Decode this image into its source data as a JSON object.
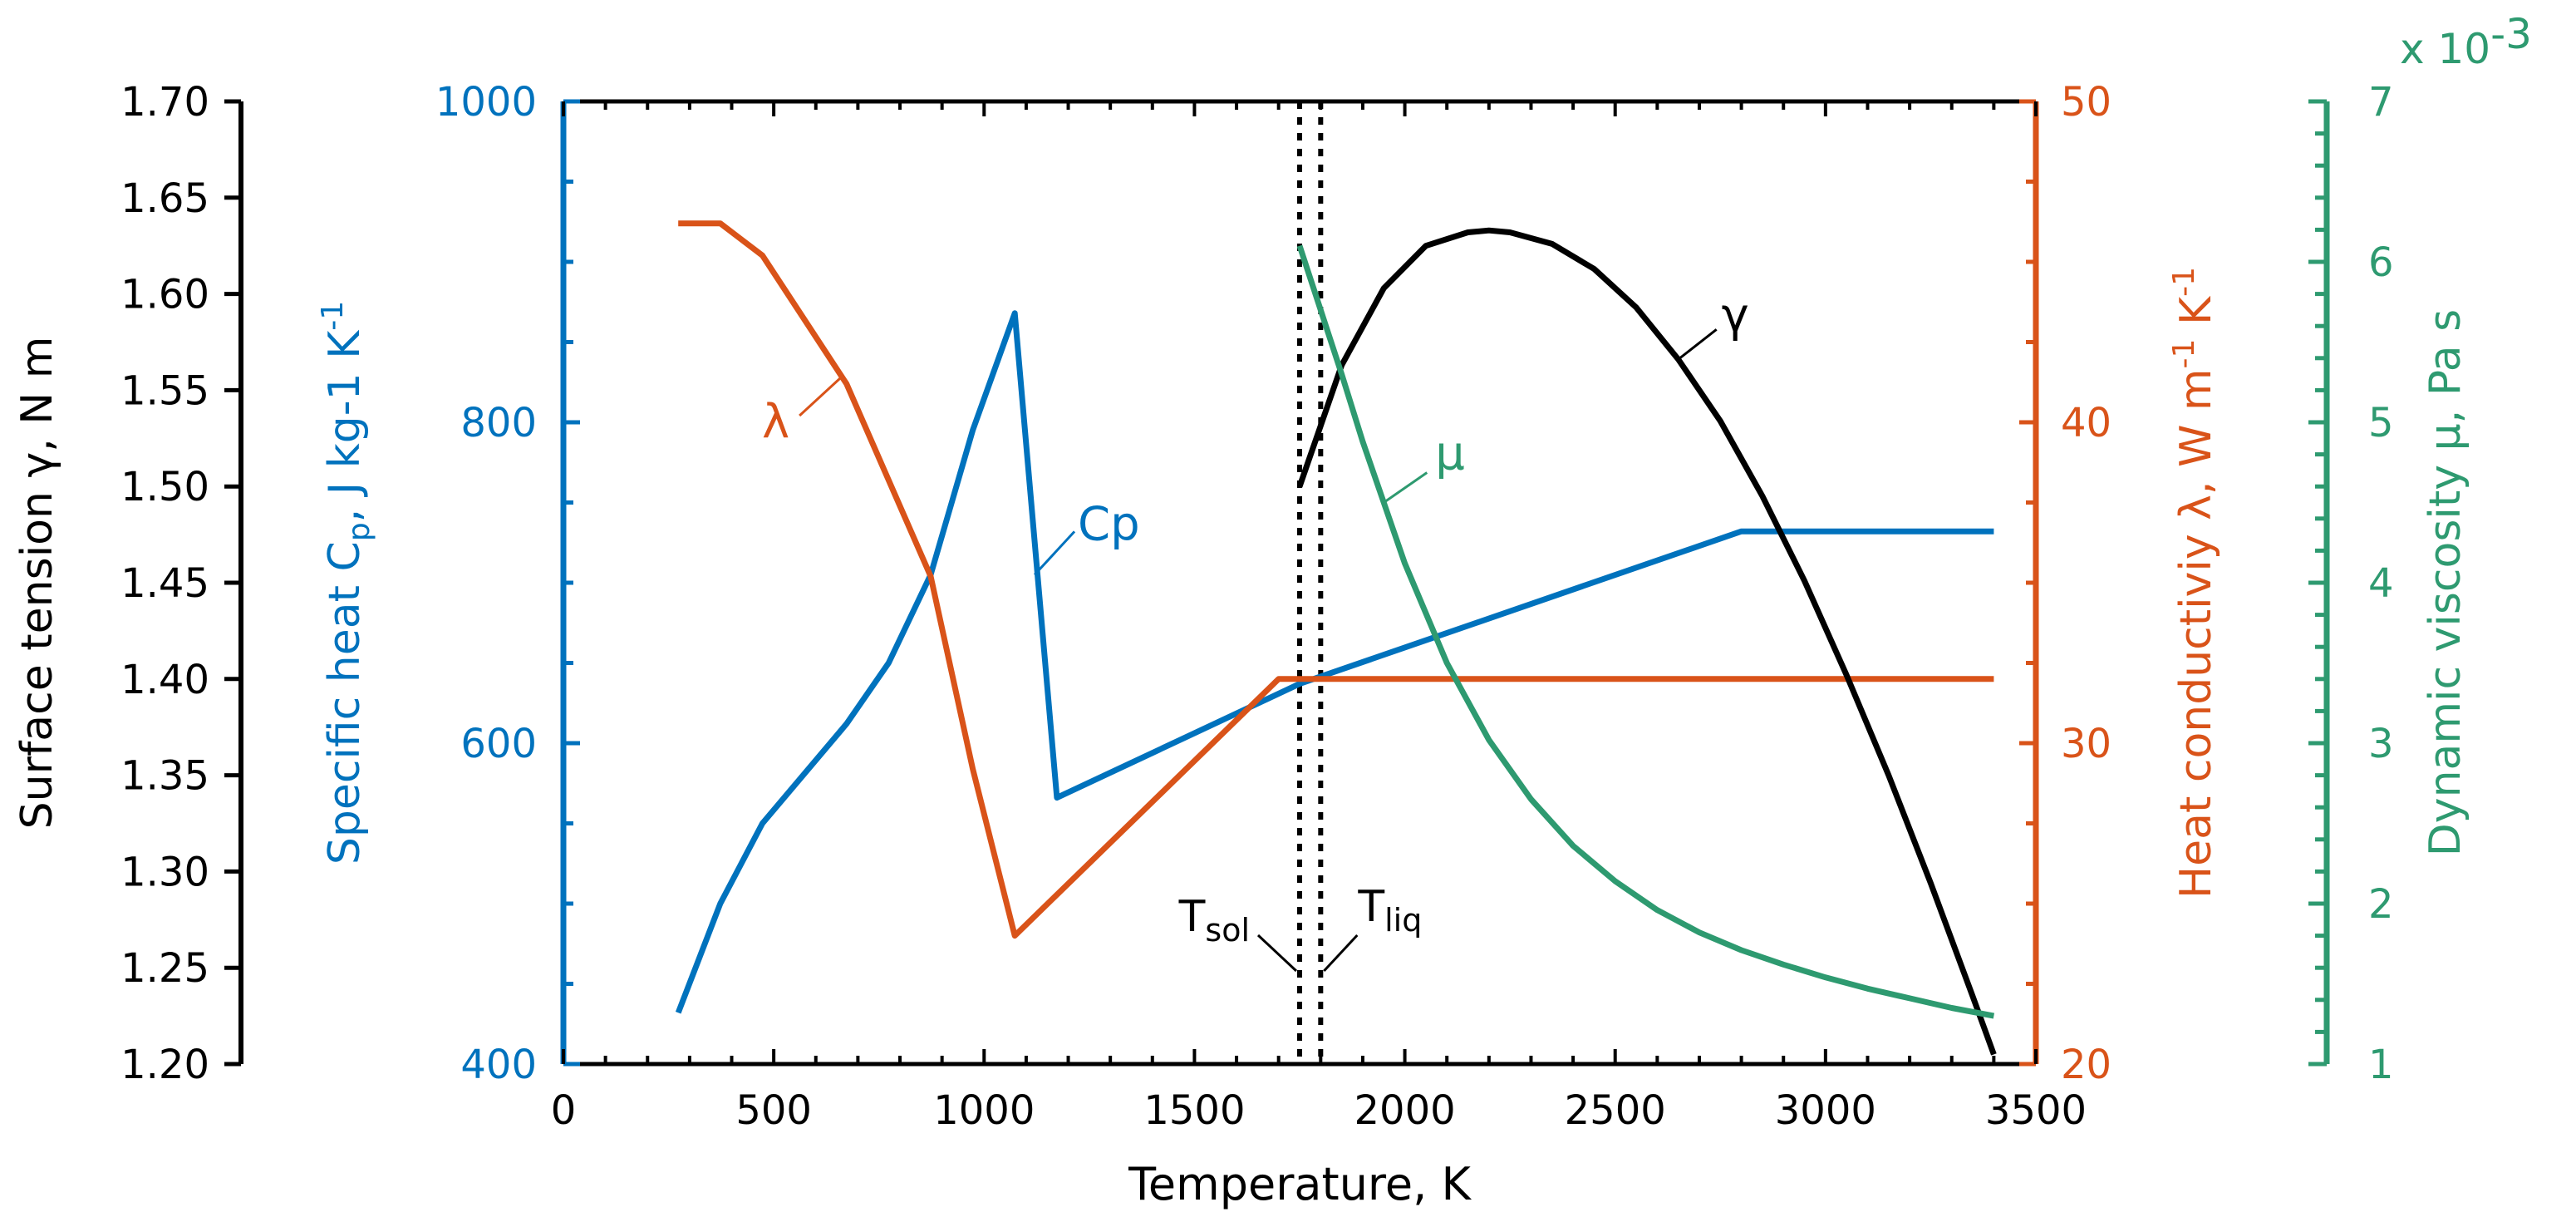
{
  "chart_data": {
    "type": "line",
    "xlabel": "Temperature, K",
    "xlim": [
      0,
      3500
    ],
    "x_ticks": [
      "0",
      "500",
      "1000",
      "1500",
      "2000",
      "2500",
      "3000",
      "3500"
    ],
    "axes": {
      "surface_tension": {
        "label": "Surface tension γ, N m",
        "color": "#000000",
        "ylim": [
          1.2,
          1.7
        ],
        "ticks": [
          "1.20",
          "1.25",
          "1.30",
          "1.35",
          "1.40",
          "1.45",
          "1.50",
          "1.55",
          "1.60",
          "1.65",
          "1.70"
        ]
      },
      "specific_heat": {
        "label_main": "Specific heat C",
        "label_sub": "p",
        "label_tail": ", J kg-1 K",
        "label_sup": "-1",
        "color": "#0072BD",
        "ylim": [
          400,
          1000
        ],
        "ticks": [
          "400",
          "600",
          "800",
          "1000"
        ]
      },
      "heat_conductivity": {
        "label_main": "Heat conductiviy λ, W m",
        "label_sup1": "-1",
        "label_mid": " K",
        "label_sup2": "-1",
        "color": "#D95319",
        "ylim": [
          20,
          50
        ],
        "ticks": [
          "20",
          "30",
          "40",
          "50"
        ]
      },
      "viscosity": {
        "label": "Dynamic viscosity μ, Pa s",
        "color": "#2E9A70",
        "ylim": [
          1,
          7
        ],
        "ticks": [
          "1",
          "2",
          "3",
          "4",
          "5",
          "6",
          "7"
        ],
        "multiplier_text": "x 10",
        "multiplier_exp": "-3"
      }
    },
    "series": [
      {
        "name": "Cp",
        "label_main": "C",
        "label_sub": "p",
        "axis": "specific_heat",
        "color": "#0072BD",
        "x": [
          273,
          373,
          473,
          673,
          773,
          873,
          973,
          1073,
          1173,
          1750,
          2800,
          3400
        ],
        "y": [
          432,
          500,
          550,
          612,
          650,
          705,
          795,
          868,
          566,
          637,
          732,
          732
        ]
      },
      {
        "name": "λ",
        "label": "λ",
        "axis": "heat_conductivity",
        "color": "#D95319",
        "x": [
          273,
          373,
          473,
          673,
          873,
          973,
          1073,
          1700,
          1750,
          3400
        ],
        "y": [
          46.2,
          46.2,
          45.2,
          41.2,
          35.2,
          29.2,
          24.0,
          32.0,
          32.0,
          32.0
        ]
      },
      {
        "name": "γ",
        "label": "γ",
        "axis": "surface_tension",
        "color": "#000000",
        "x": [
          1750,
          1850,
          1950,
          2050,
          2150,
          2200,
          2250,
          2350,
          2450,
          2550,
          2650,
          2750,
          2850,
          2950,
          3050,
          3150,
          3250,
          3350,
          3400
        ],
        "y": [
          1.5,
          1.563,
          1.603,
          1.625,
          1.632,
          1.633,
          1.632,
          1.626,
          1.613,
          1.593,
          1.566,
          1.534,
          1.495,
          1.451,
          1.402,
          1.35,
          1.294,
          1.235,
          1.205
        ]
      },
      {
        "name": "μ",
        "label": "μ",
        "axis": "viscosity",
        "color": "#2E9A70",
        "x": [
          1750,
          1800,
          1850,
          1900,
          2000,
          2100,
          2200,
          2300,
          2400,
          2500,
          2600,
          2700,
          2800,
          2900,
          3000,
          3100,
          3200,
          3300,
          3400
        ],
        "y": [
          6.1,
          5.7,
          5.3,
          4.88,
          4.12,
          3.5,
          3.02,
          2.65,
          2.36,
          2.14,
          1.96,
          1.82,
          1.71,
          1.62,
          1.54,
          1.47,
          1.41,
          1.35,
          1.3
        ]
      }
    ],
    "vlines": [
      {
        "name": "T_sol",
        "x": 1750,
        "label_main": "T",
        "label_sub": "sol"
      },
      {
        "name": "T_liq",
        "x": 1800,
        "label_main": "T",
        "label_sub": "liq"
      }
    ]
  }
}
